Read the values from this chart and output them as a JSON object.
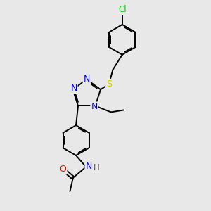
{
  "background_color": "#e8e8e8",
  "atom_colors": {
    "N": "#0000ff",
    "S": "#cccc00",
    "O": "#ff0000",
    "Cl": "#00cc00",
    "C": "#000000",
    "H": "#555555"
  },
  "bond_color": "#000000",
  "lw": 1.4
}
